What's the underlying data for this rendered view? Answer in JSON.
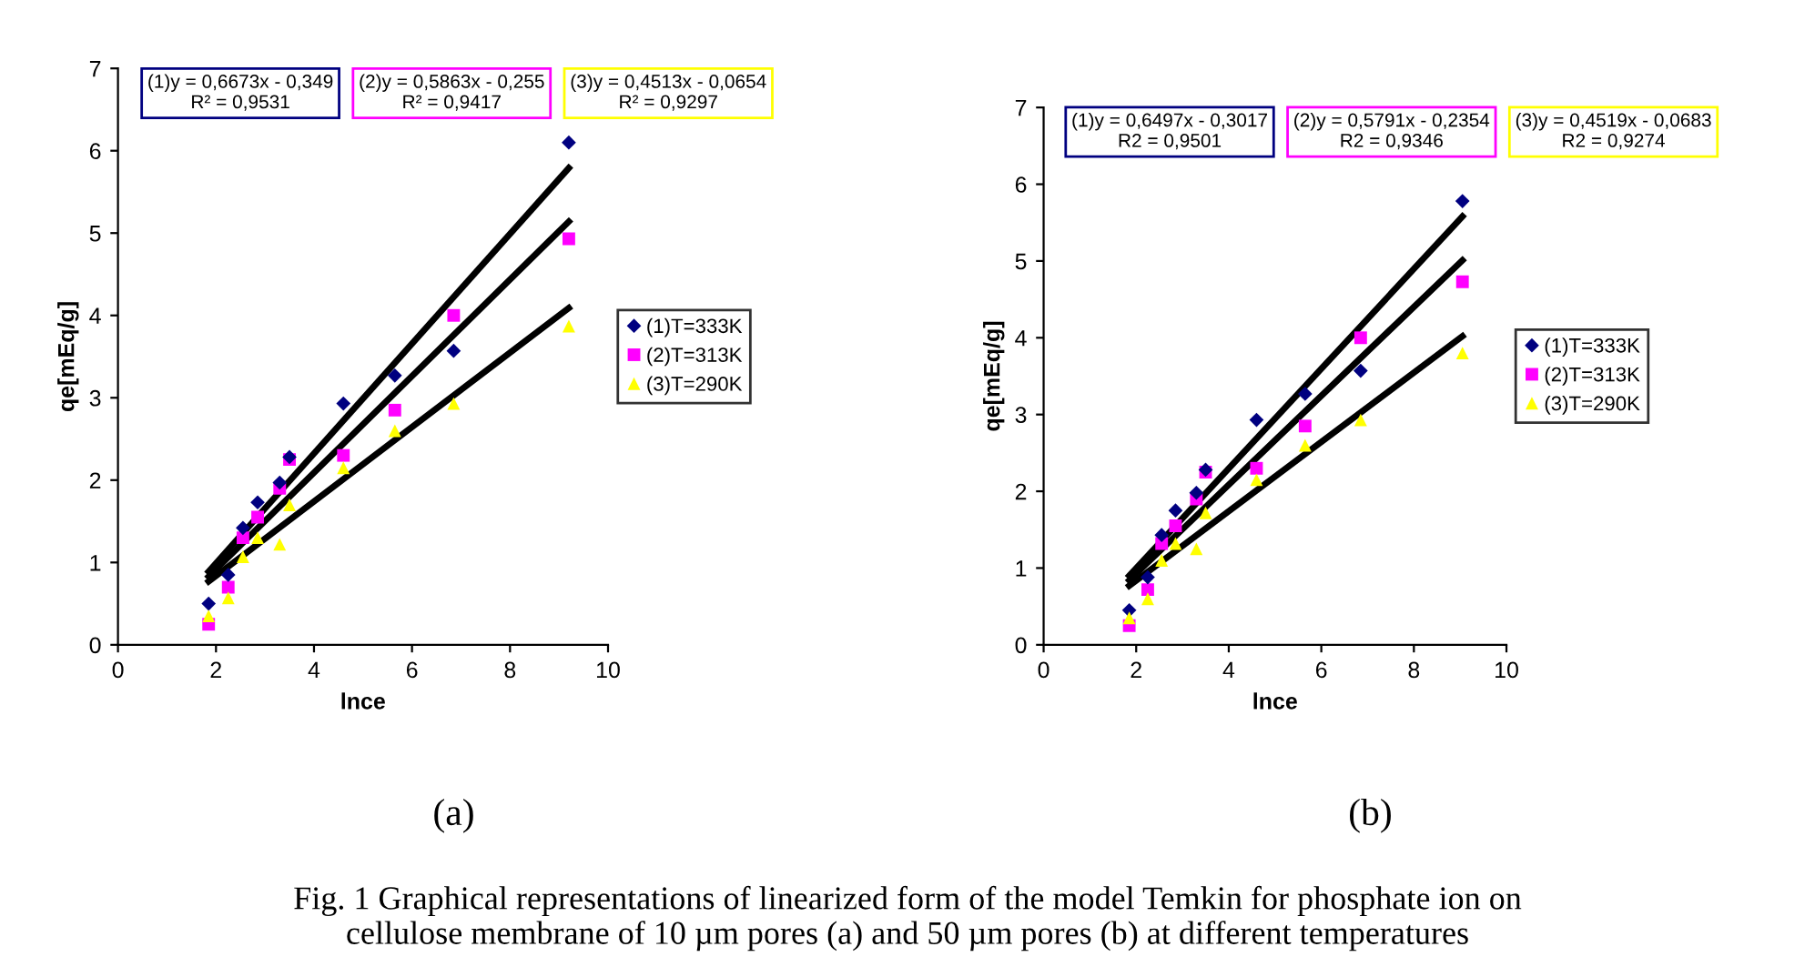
{
  "chart_data": [
    {
      "type": "scatter",
      "xlabel": "lnce",
      "ylabel": "qe[mEq/g]",
      "xlim": [
        0,
        10
      ],
      "ylim": [
        0,
        7
      ],
      "xticks": [
        0,
        2,
        4,
        6,
        8,
        10
      ],
      "yticks": [
        0,
        1,
        2,
        3,
        4,
        5,
        6,
        7
      ],
      "grid": false,
      "legend": "right",
      "x": [
        1.85,
        2.25,
        2.55,
        2.85,
        3.3,
        3.5,
        4.6,
        5.65,
        6.85,
        9.2
      ],
      "series": [
        {
          "name": "(1)T=333K",
          "color": "#000080",
          "marker": "diamond",
          "values": [
            0.5,
            0.85,
            1.42,
            1.73,
            1.97,
            2.28,
            2.93,
            3.27,
            3.57,
            6.1
          ]
        },
        {
          "name": "(2)T=313K",
          "color": "#ff00ff",
          "marker": "square",
          "values": [
            0.25,
            0.7,
            1.3,
            1.55,
            1.9,
            2.25,
            2.3,
            2.85,
            4.0,
            4.93
          ]
        },
        {
          "name": "(3)T=290K",
          "color": "#ffff00",
          "marker": "triangle",
          "values": [
            0.35,
            0.57,
            1.07,
            1.3,
            1.22,
            1.7,
            2.15,
            2.6,
            2.93,
            3.87
          ]
        },
        {
          "type": "line",
          "color": "#000000",
          "x": [
            1.85,
            9.2
          ],
          "values": [
            0.89,
            5.79
          ]
        },
        {
          "type": "line",
          "color": "#000000",
          "x": [
            1.85,
            9.2
          ],
          "values": [
            0.83,
            5.14
          ]
        },
        {
          "type": "line",
          "color": "#000000",
          "x": [
            1.85,
            9.2
          ],
          "values": [
            0.77,
            4.09
          ]
        }
      ],
      "annotations": [
        "(1)y = 0,6673x - 0,349\nR² = 0,9531",
        "(2)y = 0,5863x - 0,255\nR² = 0,9417",
        "(3)y = 0,4513x - 0,0654\nR² = 0,9297",
        "(a)",
        "Fig. 1 Graphical representations of linearized form of the model Temkin for phosphate ion on\ncellulose membrane of 10 µm pores (a) and 50 µm pores (b) at different temperatures"
      ]
    },
    {
      "type": "scatter",
      "xlabel": "lnce",
      "ylabel": "qe[mEq/g]",
      "xlim": [
        0,
        10
      ],
      "ylim": [
        0,
        7
      ],
      "xticks": [
        0,
        2,
        4,
        6,
        8,
        10
      ],
      "yticks": [
        0,
        1,
        2,
        3,
        4,
        5,
        6,
        7
      ],
      "grid": false,
      "legend": "right",
      "x": [
        1.85,
        2.25,
        2.55,
        2.85,
        3.3,
        3.5,
        4.6,
        5.65,
        6.85,
        9.05
      ],
      "series": [
        {
          "name": "(1)T=333K",
          "color": "#000080",
          "marker": "diamond",
          "values": [
            0.45,
            0.88,
            1.43,
            1.75,
            1.98,
            2.28,
            2.93,
            3.27,
            3.57,
            5.78
          ]
        },
        {
          "name": "(2)T=313K",
          "color": "#ff00ff",
          "marker": "square",
          "values": [
            0.25,
            0.72,
            1.32,
            1.55,
            1.9,
            2.25,
            2.3,
            2.85,
            4.0,
            4.73
          ]
        },
        {
          "name": "(3)T=290K",
          "color": "#ffff00",
          "marker": "triangle",
          "values": [
            0.35,
            0.6,
            1.1,
            1.32,
            1.25,
            1.72,
            2.15,
            2.6,
            2.93,
            3.8
          ]
        },
        {
          "type": "line",
          "color": "#000000",
          "x": [
            1.85,
            9.05
          ],
          "values": [
            0.9,
            5.58
          ]
        },
        {
          "type": "line",
          "color": "#000000",
          "x": [
            1.85,
            9.05
          ],
          "values": [
            0.84,
            5.01
          ]
        },
        {
          "type": "line",
          "color": "#000000",
          "x": [
            1.85,
            9.05
          ],
          "values": [
            0.77,
            4.02
          ]
        }
      ],
      "annotations": [
        "(1)y = 0,6497x - 0,3017\nR2 = 0,9501",
        "(2)y = 0,5791x - 0,2354\nR2 = 0,9346",
        "(3)y = 0,4519x - 0,0683\nR2 = 0,9274",
        "(b)"
      ]
    }
  ]
}
